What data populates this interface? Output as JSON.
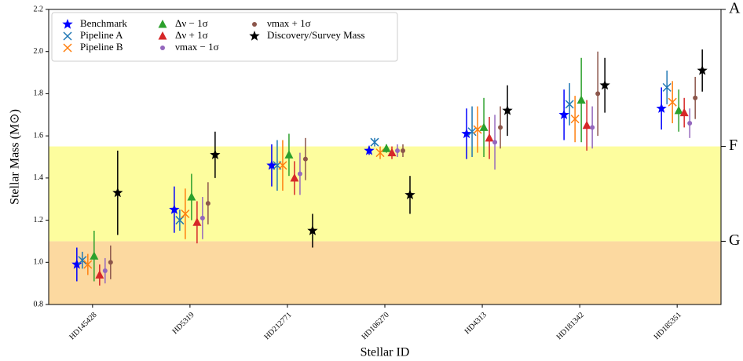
{
  "chart_data": {
    "type": "errorbar",
    "x_label": "Stellar ID",
    "y_label": "Stellar Mass (M⊙)",
    "categories": [
      "HD145428",
      "HD5319",
      "HD212771",
      "HD106270",
      "HD4313",
      "HD181342",
      "HD185351"
    ],
    "ylim": [
      0.8,
      2.2
    ],
    "yticks": [
      0.8,
      {
        "value": 1,
        "label": "1.0"
      },
      1.2,
      1.4,
      1.6,
      1.8,
      {
        "value": 2,
        "label": "2.0"
      },
      2.2
    ],
    "y2lim": [
      0.8,
      2.2
    ],
    "y2ticks": [
      {
        "value": 2.2,
        "label": "A"
      },
      {
        "value": 1.55,
        "label": "F"
      },
      {
        "value": 1.1,
        "label": "G"
      }
    ],
    "bands": [
      {
        "from": 0.8,
        "to": 1.1,
        "color": "#fcd9a0"
      },
      {
        "from": 1.1,
        "to": 1.55,
        "color": "#fdfd9e"
      }
    ],
    "legend_position": "upper left",
    "series": [
      {
        "name": "Benchmark",
        "color": "#0000ff",
        "marker": "star",
        "values": [
          0.99,
          1.25,
          1.46,
          1.53,
          1.61,
          1.7,
          1.73
        ],
        "errors": [
          0.08,
          0.11,
          0.1,
          0.02,
          0.12,
          0.12,
          0.1
        ]
      },
      {
        "name": "Pipeline A",
        "color": "#1f77b4",
        "marker": "x",
        "values": [
          1.01,
          1.2,
          1.46,
          1.57,
          1.62,
          1.75,
          1.83
        ],
        "errors": [
          0.04,
          0.05,
          0.12,
          0.02,
          0.12,
          0.1,
          0.08
        ]
      },
      {
        "name": "Pipeline B",
        "color": "#ff7f0e",
        "marker": "x",
        "values": [
          0.99,
          1.23,
          1.46,
          1.52,
          1.63,
          1.68,
          1.76
        ],
        "errors": [
          0.05,
          0.12,
          0.12,
          0.03,
          0.11,
          0.11,
          0.1
        ]
      },
      {
        "name": "Δν − 1σ",
        "color": "#2ca02c",
        "marker": "triangle",
        "values": [
          1.03,
          1.31,
          1.51,
          1.54,
          1.64,
          1.77,
          1.72
        ],
        "errors": [
          0.12,
          0.11,
          0.1,
          0.02,
          0.14,
          0.2,
          0.1
        ]
      },
      {
        "name": "Δν + 1σ",
        "color": "#d62728",
        "marker": "triangle",
        "values": [
          0.94,
          1.19,
          1.4,
          1.52,
          1.59,
          1.65,
          1.71
        ],
        "errors": [
          0.05,
          0.1,
          0.08,
          0.03,
          0.1,
          0.12,
          0.07
        ]
      },
      {
        "name": "νmax − 1σ",
        "color": "#9467bd",
        "marker": "circle",
        "values": [
          0.96,
          1.21,
          1.42,
          1.53,
          1.57,
          1.64,
          1.66
        ],
        "errors": [
          0.06,
          0.1,
          0.1,
          0.03,
          0.13,
          0.1,
          0.07
        ]
      },
      {
        "name": "νmax + 1σ",
        "color": "#8c564b",
        "marker": "circle",
        "values": [
          1.0,
          1.28,
          1.49,
          1.53,
          1.64,
          1.8,
          1.78
        ],
        "errors": [
          0.08,
          0.1,
          0.1,
          0.03,
          0.1,
          0.2,
          0.1
        ]
      },
      {
        "name": "Discovery/Survey Mass",
        "color": "#000000",
        "marker": "star",
        "values": [
          1.33,
          1.51,
          1.15,
          1.32,
          1.72,
          1.84,
          1.91
        ],
        "errors": [
          0.2,
          0.11,
          0.08,
          0.09,
          0.12,
          0.13,
          0.1
        ]
      }
    ]
  }
}
